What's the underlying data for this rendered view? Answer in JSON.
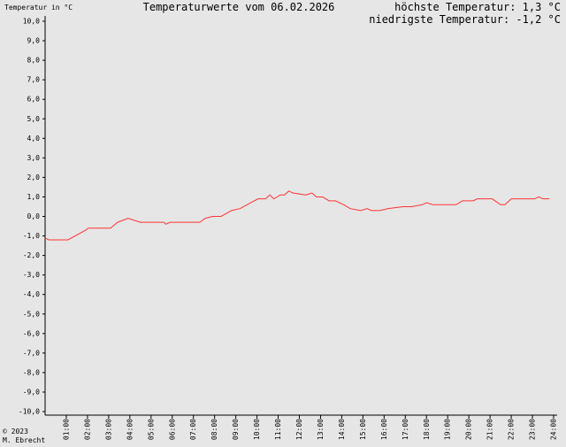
{
  "chart_data": {
    "type": "line",
    "title": "Temperaturwerte vom 06.02.2026",
    "y_axis_label": "Temperatur in °C",
    "annotations": [
      "höchste Temperatur: 1,3 °C",
      "niedrigste Temperatur: -1,2 °C"
    ],
    "footer": [
      "© 2023",
      "M. Ebrecht"
    ],
    "xlim": [
      0,
      24
    ],
    "xticks": [
      {
        "value": 1,
        "label": "01:00"
      },
      {
        "value": 2,
        "label": "02:00"
      },
      {
        "value": 3,
        "label": "03:00"
      },
      {
        "value": 4,
        "label": "04:00"
      },
      {
        "value": 5,
        "label": "05:00"
      },
      {
        "value": 6,
        "label": "06:00"
      },
      {
        "value": 7,
        "label": "07:00"
      },
      {
        "value": 8,
        "label": "08:00"
      },
      {
        "value": 9,
        "label": "09:00"
      },
      {
        "value": 10,
        "label": "10:00"
      },
      {
        "value": 11,
        "label": "11:00"
      },
      {
        "value": 12,
        "label": "12:00"
      },
      {
        "value": 13,
        "label": "13:00"
      },
      {
        "value": 14,
        "label": "14:00"
      },
      {
        "value": 15,
        "label": "15:00"
      },
      {
        "value": 16,
        "label": "16:00"
      },
      {
        "value": 17,
        "label": "17:00"
      },
      {
        "value": 18,
        "label": "18:00"
      },
      {
        "value": 19,
        "label": "19:00"
      },
      {
        "value": 20,
        "label": "20:00"
      },
      {
        "value": 21,
        "label": "21:00"
      },
      {
        "value": 22,
        "label": "22:00"
      },
      {
        "value": 23,
        "label": "23:00"
      },
      {
        "value": 24,
        "label": "24:00"
      }
    ],
    "ylim": [
      -10,
      10
    ],
    "yticks": [
      {
        "value": 10,
        "label": "10,0"
      },
      {
        "value": 9,
        "label": "9,0"
      },
      {
        "value": 8,
        "label": "8,0"
      },
      {
        "value": 7,
        "label": "7,0"
      },
      {
        "value": 6,
        "label": "6,0"
      },
      {
        "value": 5,
        "label": "5,0"
      },
      {
        "value": 4,
        "label": "4,0"
      },
      {
        "value": 3,
        "label": "3,0"
      },
      {
        "value": 2,
        "label": "2,0"
      },
      {
        "value": 1,
        "label": "1,0"
      },
      {
        "value": 0,
        "label": "0,0"
      },
      {
        "value": -1,
        "label": "-1,0"
      },
      {
        "value": -2,
        "label": "-2,0"
      },
      {
        "value": -3,
        "label": "-3,0"
      },
      {
        "value": -4,
        "label": "-4,0"
      },
      {
        "value": -5,
        "label": "-5,0"
      },
      {
        "value": -6,
        "label": "-6,0"
      },
      {
        "value": -7,
        "label": "-7,0"
      },
      {
        "value": -8,
        "label": "-8,0"
      },
      {
        "value": -9,
        "label": "-9,0"
      },
      {
        "value": -10,
        "label": "-10,0"
      }
    ],
    "x": [
      0,
      0.17,
      1.08,
      1.92,
      2.04,
      3.09,
      3.42,
      3.92,
      4.2,
      4.5,
      5.6,
      5.7,
      5.9,
      7.3,
      7.55,
      7.9,
      8.3,
      8.8,
      9.2,
      9.7,
      10.05,
      10.4,
      10.6,
      10.8,
      11.1,
      11.3,
      11.5,
      11.7,
      12.3,
      12.6,
      12.8,
      13.1,
      13.4,
      13.7,
      14.1,
      14.4,
      14.9,
      15.2,
      15.4,
      15.8,
      16.2,
      16.9,
      17.3,
      17.8,
      18.0,
      18.3,
      19.4,
      19.7,
      20.2,
      20.4,
      21.1,
      21.5,
      21.7,
      22.0,
      23.1,
      23.3,
      23.5,
      23.8
    ],
    "series": [
      {
        "color": "#ff3333",
        "values": [
          -1.1,
          -1.2,
          -1.2,
          -0.7,
          -0.6,
          -0.6,
          -0.3,
          -0.1,
          -0.2,
          -0.3,
          -0.3,
          -0.4,
          -0.3,
          -0.3,
          -0.1,
          0.0,
          0.0,
          0.3,
          0.4,
          0.7,
          0.9,
          0.9,
          1.1,
          0.9,
          1.1,
          1.1,
          1.3,
          1.2,
          1.1,
          1.2,
          1.0,
          1.0,
          0.8,
          0.8,
          0.6,
          0.4,
          0.3,
          0.4,
          0.3,
          0.3,
          0.4,
          0.5,
          0.5,
          0.6,
          0.7,
          0.6,
          0.6,
          0.8,
          0.8,
          0.9,
          0.9,
          0.6,
          0.6,
          0.9,
          0.9,
          1.0,
          0.9,
          0.9
        ]
      }
    ]
  }
}
